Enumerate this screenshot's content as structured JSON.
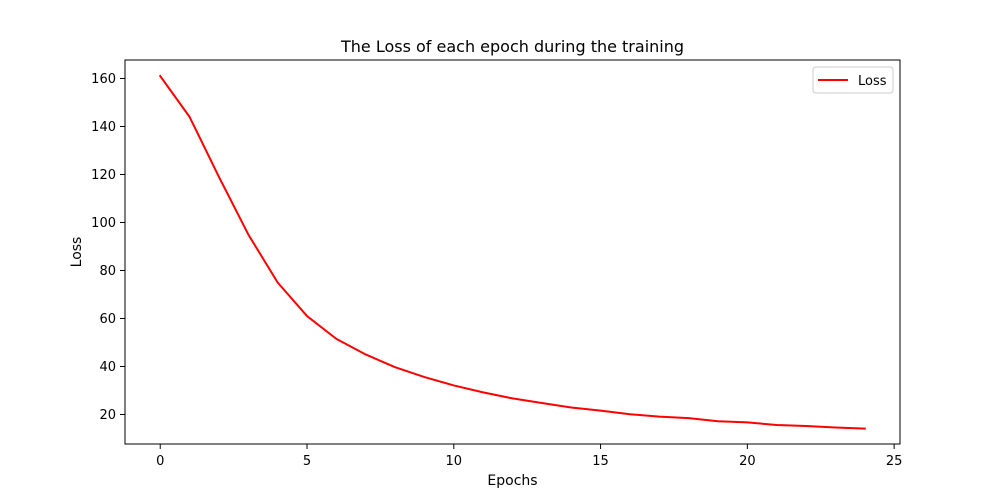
{
  "chart_data": {
    "type": "line",
    "title": "The Loss of each epoch during the training",
    "xlabel": "Epochs",
    "ylabel": "Loss",
    "xlim": [
      -1.2,
      25.2
    ],
    "ylim": [
      7.7,
      167.7
    ],
    "x_ticks": [
      0,
      5,
      10,
      15,
      20,
      25
    ],
    "y_ticks": [
      20,
      40,
      60,
      80,
      100,
      120,
      140,
      160
    ],
    "grid": false,
    "legend_position": "top-right",
    "x": [
      0,
      1,
      2,
      3,
      4,
      5,
      6,
      7,
      8,
      9,
      10,
      11,
      12,
      13,
      14,
      15,
      16,
      17,
      18,
      19,
      20,
      21,
      22,
      23,
      24
    ],
    "series": [
      {
        "name": "Loss",
        "color": "#ff0000",
        "values": [
          161,
          144,
          119,
          95,
          75,
          61,
          51.5,
          45,
          39.7,
          35.6,
          32.1,
          29.2,
          26.7,
          24.8,
          22.9,
          21.6,
          20.1,
          19.1,
          18.5,
          17.2,
          16.7,
          15.6,
          15.2,
          14.6,
          14.1
        ]
      }
    ]
  }
}
